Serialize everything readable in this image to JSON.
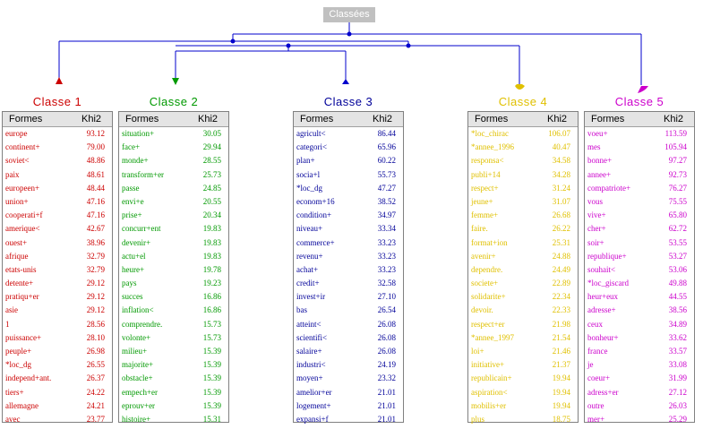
{
  "root_label": "Classées",
  "header": {
    "formes": "Formes",
    "khi2": "Khi2"
  },
  "classes": [
    {
      "title": "Classe  1",
      "color": "#cc0000",
      "rows": [
        [
          "europe",
          "93.12"
        ],
        [
          "continent+",
          "79.00"
        ],
        [
          "soviet<",
          "48.86"
        ],
        [
          "paix",
          "48.61"
        ],
        [
          "europeen+",
          "48.44"
        ],
        [
          "union+",
          "47.16"
        ],
        [
          "cooperati+f",
          "47.16"
        ],
        [
          "amerique<",
          "42.67"
        ],
        [
          "ouest+",
          "38.96"
        ],
        [
          "afrique",
          "32.79"
        ],
        [
          "etats-unis",
          "32.79"
        ],
        [
          "detente+",
          "29.12"
        ],
        [
          "pratiqu+er",
          "29.12"
        ],
        [
          "asie",
          "29.12"
        ],
        [
          "1",
          "28.56"
        ],
        [
          "puissance+",
          "28.10"
        ],
        [
          "peuple+",
          "26.98"
        ],
        [
          "*loc_dg",
          "26.55"
        ],
        [
          "independ+ant.",
          "26.37"
        ],
        [
          "tiers+",
          "24.22"
        ],
        [
          "allemagne",
          "24.21"
        ],
        [
          "avec",
          "23.77"
        ]
      ]
    },
    {
      "title": "Classe  2",
      "color": "#009900",
      "rows": [
        [
          "situation+",
          "30.05"
        ],
        [
          "face+",
          "29.94"
        ],
        [
          "monde+",
          "28.55"
        ],
        [
          "transform+er",
          "25.73"
        ],
        [
          "passe",
          "24.85"
        ],
        [
          "envi+e",
          "20.55"
        ],
        [
          "prise+",
          "20.34"
        ],
        [
          "concurr+ent",
          "19.83"
        ],
        [
          "devenir+",
          "19.83"
        ],
        [
          "actu+el",
          "19.83"
        ],
        [
          "heure+",
          "19.78"
        ],
        [
          "pays",
          "19.23"
        ],
        [
          "succes",
          "16.86"
        ],
        [
          "inflation<",
          "16.86"
        ],
        [
          "comprendre.",
          "15.73"
        ],
        [
          "volonte+",
          "15.73"
        ],
        [
          "milieu+",
          "15.39"
        ],
        [
          "majorite+",
          "15.39"
        ],
        [
          "obstacle+",
          "15.39"
        ],
        [
          "empech+er",
          "15.39"
        ],
        [
          "eprouv+er",
          "15.39"
        ],
        [
          "histoire+",
          "15.31"
        ]
      ]
    },
    {
      "title": "Classe  3",
      "color": "#000099",
      "rows": [
        [
          "agricult<",
          "86.44"
        ],
        [
          "categori<",
          "65.96"
        ],
        [
          "plan+",
          "60.22"
        ],
        [
          "socia+l",
          "55.73"
        ],
        [
          "*loc_dg",
          "47.27"
        ],
        [
          "econom+16",
          "38.52"
        ],
        [
          "condition+",
          "34.97"
        ],
        [
          "niveau+",
          "33.34"
        ],
        [
          "commerce+",
          "33.23"
        ],
        [
          "revenu+",
          "33.23"
        ],
        [
          "achat+",
          "33.23"
        ],
        [
          "credit+",
          "32.58"
        ],
        [
          "invest+ir",
          "27.10"
        ],
        [
          "bas",
          "26.54"
        ],
        [
          "atteint<",
          "26.08"
        ],
        [
          "scientifi<",
          "26.08"
        ],
        [
          "salaire+",
          "26.08"
        ],
        [
          "industri<",
          "24.19"
        ],
        [
          "moyen+",
          "23.32"
        ],
        [
          "amelior+er",
          "21.01"
        ],
        [
          "logement+",
          "21.01"
        ],
        [
          "expansi+f",
          "21.01"
        ]
      ]
    },
    {
      "title": "Classe  4",
      "color": "#e0c000",
      "rows": [
        [
          "*loc_chirac",
          "106.07"
        ],
        [
          "*annee_1996",
          "40.47"
        ],
        [
          "responsa<",
          "34.58"
        ],
        [
          "publi+14",
          "34.28"
        ],
        [
          "respect+",
          "31.24"
        ],
        [
          "jeune+",
          "31.07"
        ],
        [
          "femme+",
          "26.68"
        ],
        [
          "faire.",
          "26.22"
        ],
        [
          "format+ion",
          "25.31"
        ],
        [
          "avenir+",
          "24.88"
        ],
        [
          "dependre.",
          "24.49"
        ],
        [
          "societe+",
          "22.89"
        ],
        [
          "solidarite+",
          "22.34"
        ],
        [
          "devoir.",
          "22.33"
        ],
        [
          "respect+er",
          "21.98"
        ],
        [
          "*annee_1997",
          "21.54"
        ],
        [
          "loi+",
          "21.46"
        ],
        [
          "initiative+",
          "21.37"
        ],
        [
          "republicain+",
          "19.94"
        ],
        [
          "aspiration<",
          "19.94"
        ],
        [
          "mobilis+er",
          "19.94"
        ],
        [
          "plus",
          "18.75"
        ]
      ]
    },
    {
      "title": "Classe  5",
      "color": "#cc00cc",
      "rows": [
        [
          "voeu+",
          "113.59"
        ],
        [
          "mes",
          "105.94"
        ],
        [
          "bonne+",
          "97.27"
        ],
        [
          "annee+",
          "92.73"
        ],
        [
          "compatriote+",
          "76.27"
        ],
        [
          "vous",
          "75.55"
        ],
        [
          "vive+",
          "65.80"
        ],
        [
          "cher+",
          "62.72"
        ],
        [
          "soir+",
          "53.55"
        ],
        [
          "republique+",
          "53.27"
        ],
        [
          "souhait<",
          "53.06"
        ],
        [
          "*loc_giscard",
          "49.88"
        ],
        [
          "heur+eux",
          "44.55"
        ],
        [
          "adresse+",
          "38.56"
        ],
        [
          "ceux",
          "34.89"
        ],
        [
          "bonheur+",
          "33.62"
        ],
        [
          "france",
          "33.57"
        ],
        [
          "je",
          "33.08"
        ],
        [
          "coeur+",
          "31.99"
        ],
        [
          "adress+er",
          "27.12"
        ],
        [
          "outre",
          "26.03"
        ],
        [
          "mer+",
          "25.29"
        ]
      ]
    }
  ]
}
